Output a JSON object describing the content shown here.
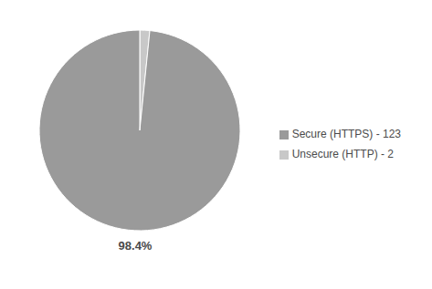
{
  "chart_data": {
    "type": "pie",
    "categories": [
      "Unsecure (HTTP) - 2",
      "Secure (HTTPS) - 123"
    ],
    "values": [
      2,
      123
    ],
    "colors": [
      "#c8c8c8",
      "#9a9a9a"
    ],
    "annotations": [
      "98.4%"
    ],
    "legend": "right"
  }
}
